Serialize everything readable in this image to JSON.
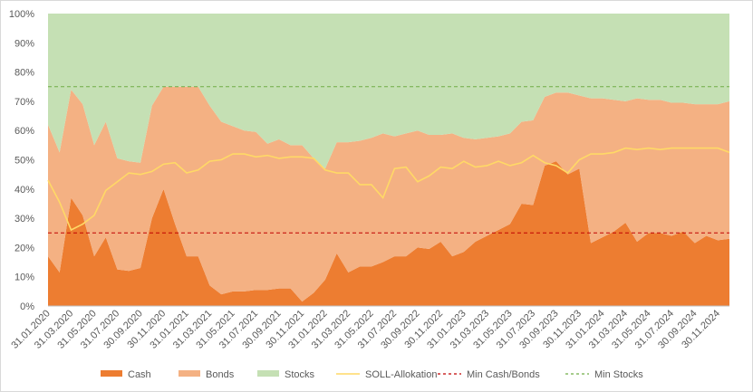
{
  "chart_data": {
    "type": "area",
    "stacked": true,
    "ylim": [
      0,
      100
    ],
    "y_ticks": [
      "0%",
      "10%",
      "20%",
      "30%",
      "40%",
      "50%",
      "60%",
      "70%",
      "80%",
      "90%",
      "100%"
    ],
    "x": [
      "31.01.2020",
      "29.02.2020",
      "31.03.2020",
      "30.04.2020",
      "31.05.2020",
      "30.06.2020",
      "31.07.2020",
      "31.08.2020",
      "30.09.2020",
      "31.10.2020",
      "30.11.2020",
      "31.12.2020",
      "31.01.2021",
      "28.02.2021",
      "31.03.2021",
      "30.04.2021",
      "31.05.2021",
      "30.06.2021",
      "31.07.2021",
      "31.08.2021",
      "30.09.2021",
      "31.10.2021",
      "30.11.2021",
      "31.12.2021",
      "31.01.2022",
      "28.02.2022",
      "31.03.2022",
      "30.04.2022",
      "31.05.2022",
      "30.06.2022",
      "31.07.2022",
      "31.08.2022",
      "30.09.2022",
      "31.10.2022",
      "30.11.2022",
      "31.12.2022",
      "31.01.2023",
      "28.02.2023",
      "31.03.2023",
      "30.04.2023",
      "31.05.2023",
      "30.06.2023",
      "31.07.2023",
      "31.08.2023",
      "30.09.2023",
      "31.10.2023",
      "30.11.2023",
      "31.12.2023",
      "31.01.2024",
      "29.02.2024",
      "31.03.2024",
      "30.04.2024",
      "31.05.2024",
      "30.06.2024",
      "31.07.2024",
      "31.08.2024",
      "30.09.2024",
      "31.10.2024",
      "30.11.2024",
      "31.12.2024"
    ],
    "x_tick_labels": [
      "31.01.2020",
      "31.03.2020",
      "31.05.2020",
      "31.07.2020",
      "30.09.2020",
      "30.11.2020",
      "31.01.2021",
      "31.03.2021",
      "31.05.2021",
      "31.07.2021",
      "30.09.2021",
      "30.11.2021",
      "31.01.2022",
      "31.03.2022",
      "31.05.2022",
      "31.07.2022",
      "30.09.2022",
      "30.11.2022",
      "31.01.2023",
      "31.03.2023",
      "31.05.2023",
      "31.07.2023",
      "30.09.2023",
      "30.11.2023",
      "31.01.2024",
      "31.03.2024",
      "31.05.2024",
      "31.07.2024",
      "30.09.2024",
      "30.11.2024"
    ],
    "series": [
      {
        "name": "Cash",
        "color": "#ed7d31",
        "values": [
          17,
          11.5,
          37,
          31,
          17,
          23.5,
          12.5,
          12,
          13,
          30,
          40,
          28,
          17,
          17,
          7,
          4,
          5,
          5,
          5.5,
          5.5,
          6,
          6,
          1.5,
          4.5,
          9,
          18,
          11.5,
          13.5,
          13.5,
          15,
          17,
          17,
          20,
          19.5,
          22,
          17,
          18.5,
          22,
          24,
          26,
          28,
          35,
          34.5,
          48,
          49.5,
          45,
          47,
          21.5,
          23.5,
          25.5,
          28.5,
          22,
          25,
          25,
          24,
          25.5,
          21.5,
          24,
          22.5,
          23
        ]
      },
      {
        "name": "Bonds",
        "color": "#f4b183",
        "values": [
          45,
          41,
          37,
          38,
          38,
          39.5,
          38,
          37.5,
          36,
          38.5,
          35,
          47,
          58,
          58,
          61.5,
          59,
          56.5,
          55,
          54,
          50,
          51,
          49,
          53.5,
          46,
          38,
          38,
          44.5,
          43,
          44,
          44,
          41,
          42,
          40,
          39,
          36.5,
          42,
          39,
          35,
          33.5,
          32,
          31,
          28,
          29,
          23.5,
          23.5,
          28,
          25,
          49.5,
          47.5,
          45,
          41.5,
          49,
          45.5,
          45.5,
          45.5,
          44,
          47.5,
          45,
          46.5,
          47
        ]
      },
      {
        "name": "Stocks",
        "color": "#c5e0b4",
        "values": [
          38,
          47.5,
          26,
          31,
          45,
          37,
          49.5,
          50.5,
          51,
          31.5,
          25,
          25,
          25,
          25,
          31.5,
          37,
          38.5,
          40,
          40.5,
          44.5,
          43,
          45,
          45,
          49.5,
          53,
          44,
          44,
          43.5,
          42.5,
          41,
          42,
          41,
          40,
          41.5,
          41.5,
          41,
          42.5,
          43,
          42.5,
          42,
          41,
          37,
          36.5,
          28.5,
          27,
          27,
          28,
          29,
          29,
          29.5,
          30,
          29,
          29.5,
          29.5,
          30.5,
          30.5,
          31,
          31,
          31,
          30
        ]
      }
    ],
    "line_series": [
      {
        "name": "SOLL-Allokation",
        "color": "#ffd966",
        "dash": "solid",
        "values": [
          43,
          35.5,
          26,
          28,
          31,
          39.5,
          42.5,
          45.5,
          45,
          46,
          48.5,
          49,
          45.5,
          46.5,
          49.5,
          50,
          52,
          52,
          51,
          51.5,
          50.5,
          51,
          51,
          50.5,
          46.5,
          45.5,
          45.5,
          41.5,
          41.5,
          37,
          47,
          47.5,
          42.5,
          44.5,
          47.5,
          47,
          49.5,
          47.5,
          48,
          49.5,
          48,
          49,
          51.5,
          49,
          48,
          45.5,
          50,
          52,
          52,
          52.5,
          54,
          53.5,
          54,
          53.5,
          54,
          54,
          54,
          54,
          54,
          52.5
        ]
      },
      {
        "name": "Min Cash/Bonds",
        "color": "#c00000",
        "dash": "dashed",
        "values": [
          25,
          25,
          25,
          25,
          25,
          25,
          25,
          25,
          25,
          25,
          25,
          25,
          25,
          25,
          25,
          25,
          25,
          25,
          25,
          25,
          25,
          25,
          25,
          25,
          25,
          25,
          25,
          25,
          25,
          25,
          25,
          25,
          25,
          25,
          25,
          25,
          25,
          25,
          25,
          25,
          25,
          25,
          25,
          25,
          25,
          25,
          25,
          25,
          25,
          25,
          25,
          25,
          25,
          25,
          25,
          25,
          25,
          25,
          25,
          25
        ]
      },
      {
        "name": "Min Stocks",
        "color": "#70ad47",
        "dash": "dashed",
        "values": [
          75,
          75,
          75,
          75,
          75,
          75,
          75,
          75,
          75,
          75,
          75,
          75,
          75,
          75,
          75,
          75,
          75,
          75,
          75,
          75,
          75,
          75,
          75,
          75,
          75,
          75,
          75,
          75,
          75,
          75,
          75,
          75,
          75,
          75,
          75,
          75,
          75,
          75,
          75,
          75,
          75,
          75,
          75,
          75,
          75,
          75,
          75,
          75,
          75,
          75,
          75,
          75,
          75,
          75,
          75,
          75,
          75,
          75,
          75,
          75
        ]
      }
    ],
    "legend": {
      "position": "bottom",
      "entries": [
        "Cash",
        "Bonds",
        "Stocks",
        "SOLL-Allokation",
        "Min Cash/Bonds",
        "Min Stocks"
      ]
    },
    "grid": false
  }
}
